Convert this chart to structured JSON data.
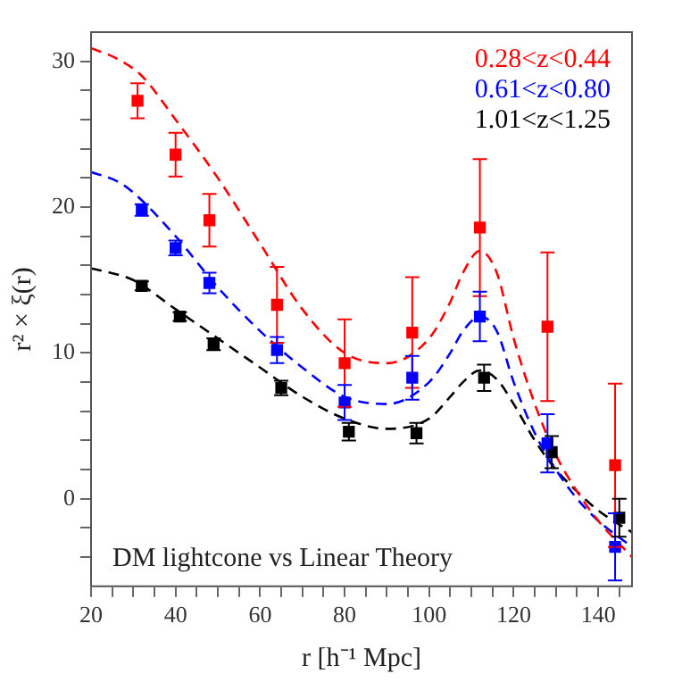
{
  "chart_data": {
    "type": "scatter",
    "xlabel": "r [h⁻¹ Mpc]",
    "ylabel": "r² × ξ(r)",
    "annotations": [
      "DM lightcone vs Linear Theory"
    ],
    "xlim": [
      20,
      148
    ],
    "xticks": [
      20,
      {
        "value": 25,
        "label": null
      },
      {
        "value": 30,
        "label": null
      },
      {
        "value": 35,
        "label": null
      },
      40,
      {
        "value": 45,
        "label": null
      },
      {
        "value": 50,
        "label": null
      },
      {
        "value": 55,
        "label": null
      },
      60,
      {
        "value": 65,
        "label": null
      },
      {
        "value": 70,
        "label": null
      },
      {
        "value": 75,
        "label": null
      },
      80,
      {
        "value": 85,
        "label": null
      },
      {
        "value": 90,
        "label": null
      },
      {
        "value": 95,
        "label": null
      },
      100,
      {
        "value": 105,
        "label": null
      },
      {
        "value": 110,
        "label": null
      },
      {
        "value": 115,
        "label": null
      },
      120,
      {
        "value": 125,
        "label": null
      },
      {
        "value": 130,
        "label": null
      },
      {
        "value": 135,
        "label": null
      },
      140,
      {
        "value": 145,
        "label": null
      }
    ],
    "ylim": [
      -6,
      32
    ],
    "yticks": [
      {
        "value": -4,
        "label": null
      },
      {
        "value": -2,
        "label": null
      },
      0,
      {
        "value": 2,
        "label": null
      },
      {
        "value": 4,
        "label": null
      },
      {
        "value": 6,
        "label": null
      },
      {
        "value": 8,
        "label": null
      },
      10,
      {
        "value": 12,
        "label": null
      },
      {
        "value": 14,
        "label": null
      },
      {
        "value": 16,
        "label": null
      },
      {
        "value": 18,
        "label": null
      },
      20,
      {
        "value": 22,
        "label": null
      },
      {
        "value": 24,
        "label": null
      },
      {
        "value": 26,
        "label": null
      },
      {
        "value": 28,
        "label": null
      },
      30
    ],
    "legend": "top right",
    "marker": "square",
    "grid": false,
    "series": [
      {
        "name": "0.28<z<0.44",
        "color": "#ff0000",
        "x": [
          31,
          40,
          48,
          64,
          80,
          96,
          112,
          128,
          144
        ],
        "values": [
          27.3,
          23.6,
          19.1,
          13.3,
          9.3,
          11.4,
          18.6,
          11.8,
          2.3
        ],
        "errors": [
          1.2,
          1.5,
          1.8,
          2.6,
          3,
          3.8,
          4.7,
          5.1,
          5.6
        ]
      },
      {
        "name": "0.61<z<0.80",
        "color": "#0000ff",
        "x": [
          32,
          40,
          48,
          64,
          80,
          96,
          112,
          128,
          144
        ],
        "values": [
          19.8,
          17.2,
          14.8,
          10.2,
          6.6,
          8.3,
          12.5,
          3.8,
          -3.3
        ],
        "errors": [
          0.4,
          0.5,
          0.7,
          0.9,
          1.2,
          1.5,
          1.7,
          2,
          2.3
        ]
      },
      {
        "name": "1.01<z<1.25",
        "color": "#000000",
        "x": [
          32,
          41,
          49,
          65,
          81,
          97,
          113,
          129,
          145
        ],
        "values": [
          14.6,
          12.5,
          10.6,
          7.6,
          4.6,
          4.5,
          8.3,
          3.2,
          -1.3
        ],
        "errors": [
          0.3,
          0.3,
          0.4,
          0.5,
          0.6,
          0.7,
          0.9,
          1.1,
          1.3
        ]
      },
      {
        "type": "line",
        "color": "#ff0000",
        "line_style": "dashed",
        "marker": "none",
        "x": [
          20,
          26,
          32,
          40,
          50,
          60,
          70,
          80,
          90,
          100,
          105,
          108,
          112,
          116,
          120,
          125,
          130,
          135,
          140,
          148
        ],
        "values": [
          30.9,
          30.2,
          29,
          26,
          22,
          17.5,
          13,
          10,
          9.3,
          11,
          13.5,
          15.5,
          17,
          15.5,
          11,
          6.5,
          3,
          0.5,
          -1.5,
          -4
        ]
      },
      {
        "type": "line",
        "color": "#0000ff",
        "line_style": "dashed",
        "marker": "none",
        "x": [
          20,
          26,
          30,
          40,
          50,
          60,
          70,
          80,
          90,
          100,
          105,
          108,
          112,
          116,
          120,
          125,
          130,
          135,
          140,
          148
        ],
        "values": [
          22.4,
          21.8,
          21,
          18,
          14.5,
          11.5,
          9,
          7,
          6.5,
          8,
          10,
          11.5,
          12.5,
          11.5,
          8,
          4.5,
          2,
          0,
          -1.5,
          -3.3
        ]
      },
      {
        "type": "line",
        "color": "#000000",
        "line_style": "dashed",
        "marker": "none",
        "x": [
          20,
          26,
          30,
          40,
          50,
          60,
          70,
          80,
          90,
          100,
          105,
          108,
          112,
          116,
          120,
          125,
          130,
          135,
          140,
          148
        ],
        "values": [
          15.8,
          15.4,
          15,
          13,
          11,
          9,
          7,
          5.5,
          4.8,
          5.5,
          7,
          8,
          8.8,
          8.2,
          6.5,
          4,
          2,
          0.5,
          -0.8,
          -2.3
        ]
      }
    ]
  }
}
